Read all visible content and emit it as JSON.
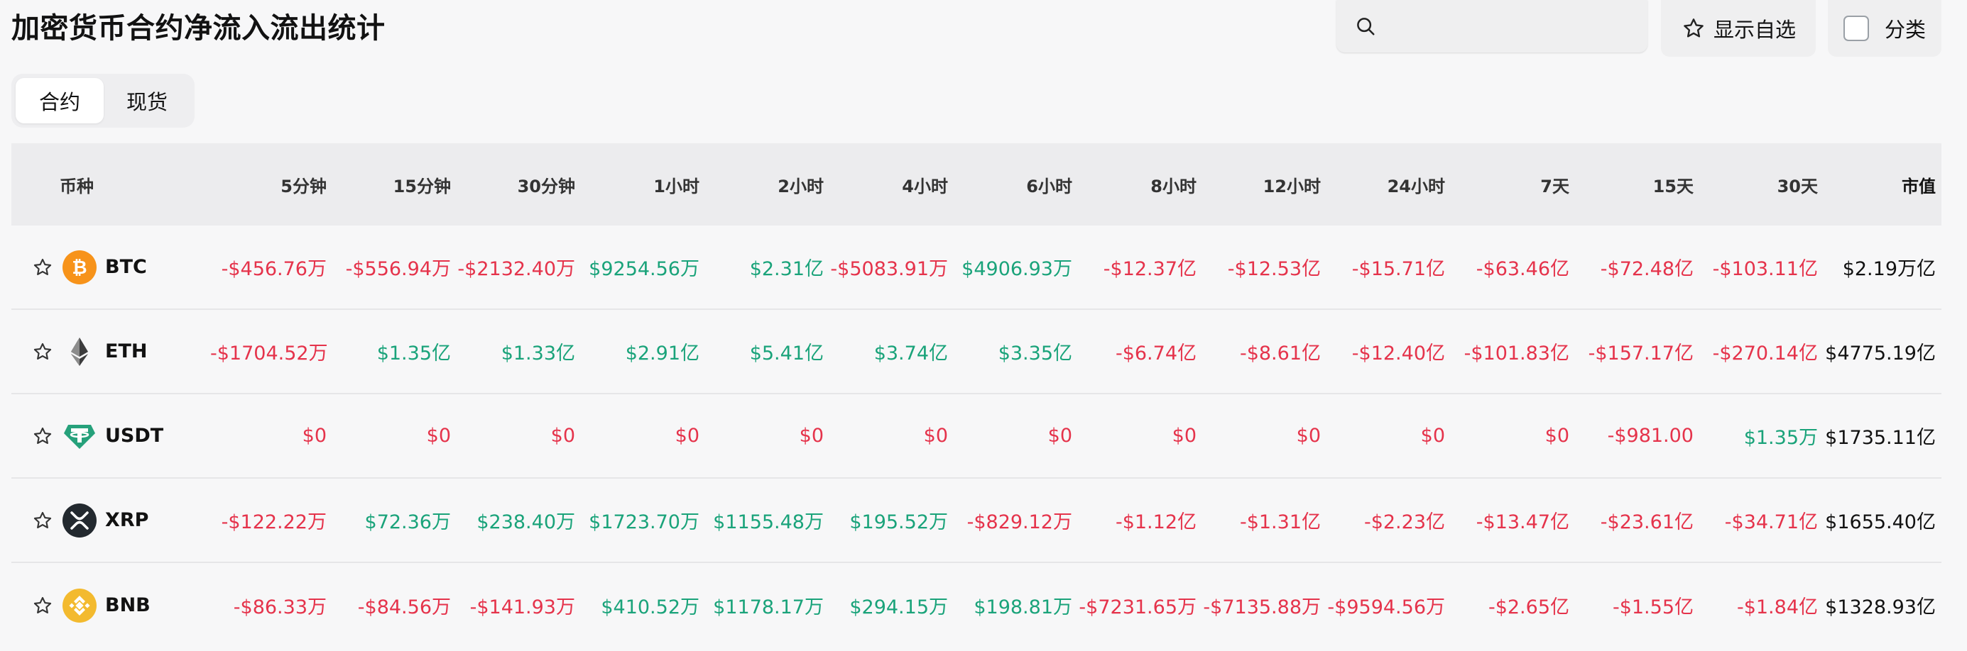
{
  "title": "加密货币合约净流入流出统计",
  "search": {
    "placeholder": ""
  },
  "buttons": {
    "show_favorites": "显示自选",
    "category": "分类"
  },
  "tabs": [
    {
      "label": "合约",
      "active": true
    },
    {
      "label": "现货",
      "active": false
    }
  ],
  "columns": [
    "币种",
    "5分钟",
    "15分钟",
    "30分钟",
    "1小时",
    "2小时",
    "4小时",
    "6小时",
    "8小时",
    "12小时",
    "24小时",
    "7天",
    "15天",
    "30天",
    "市值"
  ],
  "colors": {
    "positive": "#1aa37a",
    "negative": "#e5334b"
  },
  "rows": [
    {
      "symbol": "BTC",
      "icon": "bitcoin-icon",
      "values": [
        "-$456.76万",
        "-$556.94万",
        "-$2132.40万",
        "$9254.56万",
        "$2.31亿",
        "-$5083.91万",
        "$4906.93万",
        "-$12.37亿",
        "-$12.53亿",
        "-$15.71亿",
        "-$63.46亿",
        "-$72.48亿",
        "-$103.11亿"
      ],
      "market_cap": "$2.19万亿"
    },
    {
      "symbol": "ETH",
      "icon": "ethereum-icon",
      "values": [
        "-$1704.52万",
        "$1.35亿",
        "$1.33亿",
        "$2.91亿",
        "$5.41亿",
        "$3.74亿",
        "$3.35亿",
        "-$6.74亿",
        "-$8.61亿",
        "-$12.40亿",
        "-$101.83亿",
        "-$157.17亿",
        "-$270.14亿"
      ],
      "market_cap": "$4775.19亿"
    },
    {
      "symbol": "USDT",
      "icon": "tether-icon",
      "values": [
        "$0",
        "$0",
        "$0",
        "$0",
        "$0",
        "$0",
        "$0",
        "$0",
        "$0",
        "$0",
        "$0",
        "-$981.00",
        "$1.35万"
      ],
      "market_cap": "$1735.11亿"
    },
    {
      "symbol": "XRP",
      "icon": "xrp-icon",
      "values": [
        "-$122.22万",
        "$72.36万",
        "$238.40万",
        "$1723.70万",
        "$1155.48万",
        "$195.52万",
        "-$829.12万",
        "-$1.12亿",
        "-$1.31亿",
        "-$2.23亿",
        "-$13.47亿",
        "-$23.61亿",
        "-$34.71亿"
      ],
      "market_cap": "$1655.40亿"
    },
    {
      "symbol": "BNB",
      "icon": "bnb-icon",
      "values": [
        "-$86.33万",
        "-$84.56万",
        "-$141.93万",
        "$410.52万",
        "$1178.17万",
        "$294.15万",
        "$198.81万",
        "-$7231.65万",
        "-$7135.88万",
        "-$9594.56万",
        "-$2.65亿",
        "-$1.55亿",
        "-$1.84亿"
      ],
      "market_cap": "$1328.93亿"
    }
  ],
  "sign_override": {
    "USDT": [
      "neg",
      "neg",
      "neg",
      "neg",
      "neg",
      "neg",
      "neg",
      "neg",
      "neg",
      "neg",
      "neg",
      "neg",
      "pos"
    ]
  }
}
